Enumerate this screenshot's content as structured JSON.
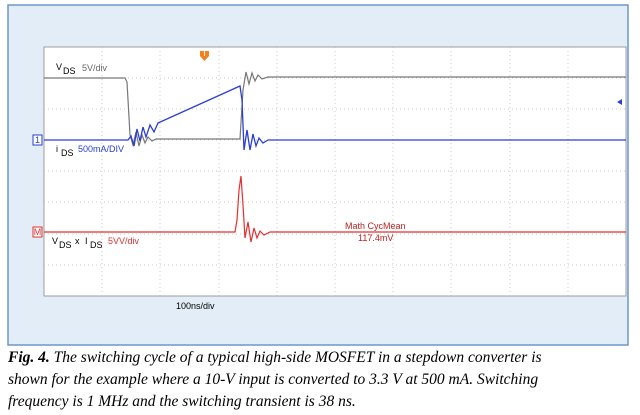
{
  "scope": {
    "trigger_marker": "T",
    "ch1_marker": "1",
    "math_marker": "M",
    "vds": {
      "symbol": "V",
      "sub": "DS",
      "scale": "5V/div"
    },
    "ids": {
      "symbol": "i",
      "sub": "DS",
      "scale": "500mA/DIV"
    },
    "product": {
      "symbol1": "V",
      "sub1": "DS",
      "times": "x",
      "symbol2": "I",
      "sub2": "DS",
      "scale": "5VV/div"
    },
    "math_label": "Math CycMean",
    "math_value": "117.4mV",
    "timebase": "100ns/div"
  },
  "caption": {
    "label": "Fig. 4.",
    "lines": [
      "The switching cycle of a typical high-side MOSFET in a stepdown converter is",
      "shown for the example where a 10-V input is converted to 3.3 V at 500 mA. Switching",
      "frequency is 1 MHz and the switching transient is 38 ns."
    ]
  }
}
